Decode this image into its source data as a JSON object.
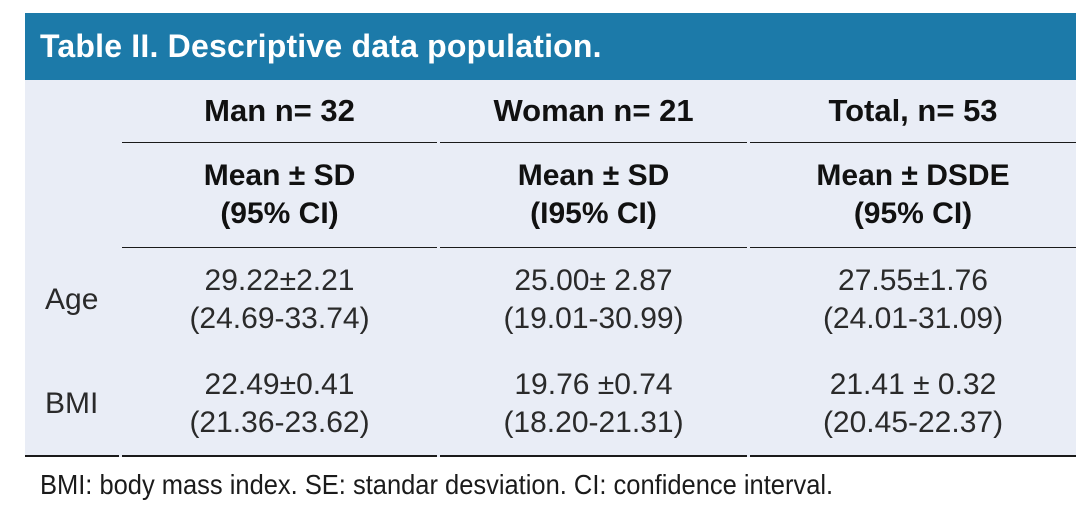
{
  "title": "Table II. Descriptive data population.",
  "columns": [
    {
      "label": "Man n= 32",
      "sub1": "Mean ± SD",
      "sub2": "(95% CI)"
    },
    {
      "label": "Woman n= 21",
      "sub1": "Mean ± SD",
      "sub2": "(I95% CI)"
    },
    {
      "label": "Total, n= 53",
      "sub1": "Mean ± DSDE",
      "sub2": "(95% CI)"
    }
  ],
  "rows": [
    {
      "label": "Age",
      "man_mean": "29.22±2.21",
      "man_ci": "(24.69-33.74)",
      "woman_mean": "25.00± 2.87",
      "woman_ci": "(19.01-30.99)",
      "total_mean": "27.55±1.76",
      "total_ci": "(24.01-31.09)"
    },
    {
      "label": "BMI",
      "man_mean": "22.49±0.41",
      "man_ci": "(21.36-23.62)",
      "woman_mean": "19.76 ±0.74",
      "woman_ci": "(18.20-21.31)",
      "total_mean": "21.41 ± 0.32",
      "total_ci": "(20.45-22.37)"
    }
  ],
  "footnote": "BMI: body mass index. SE: standar desviation. CI: confidence interval.",
  "colors": {
    "header_bg": "#1c7aa9",
    "body_bg": "#e9edf6",
    "line": "#1a1a1a"
  }
}
